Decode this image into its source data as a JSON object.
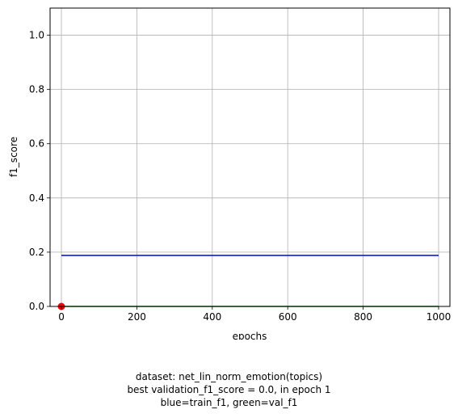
{
  "chart_data": {
    "type": "line",
    "xlabel": "epochs",
    "ylabel": "f1_score",
    "xlim": [
      -30,
      1030
    ],
    "ylim": [
      0.0,
      1.1
    ],
    "xticks": [
      0,
      200,
      400,
      600,
      800,
      1000
    ],
    "yticks": [
      0.0,
      0.2,
      0.4,
      0.6,
      0.8,
      1.0
    ],
    "grid": true,
    "series": [
      {
        "name": "train_f1",
        "color": "#0000ff",
        "x": [
          0,
          1000
        ],
        "y": [
          0.188,
          0.188
        ]
      },
      {
        "name": "val_f1",
        "color": "#008000",
        "x": [
          0,
          1000
        ],
        "y": [
          0.0,
          0.0
        ]
      }
    ],
    "marker": {
      "x": 0,
      "y": 0.0,
      "color": "#ff0000"
    }
  },
  "caption": {
    "line1": "dataset: net_lin_norm_emotion(topics)",
    "line2": "best validation_f1_score = 0.0, in epoch 1",
    "line3": "blue=train_f1, green=val_f1"
  }
}
